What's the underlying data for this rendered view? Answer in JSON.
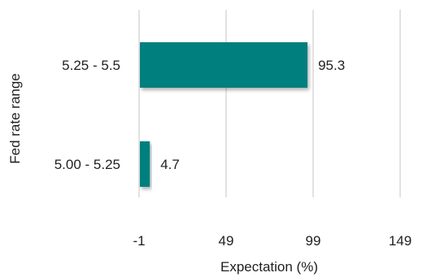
{
  "chart_data": {
    "type": "bar",
    "orientation": "horizontal",
    "categories": [
      "5.25 - 5.5",
      "5.00 - 5.25"
    ],
    "values": [
      95.3,
      4.7
    ],
    "data_labels": [
      "95.3",
      "4.7"
    ],
    "xlabel": "Expectation (%)",
    "ylabel": "Fed rate range",
    "xlim": [
      -1,
      149
    ],
    "xticks": [
      -1,
      49,
      99,
      149
    ],
    "xtick_labels": [
      "-1",
      "49",
      "99",
      "149"
    ],
    "grid": true,
    "legend": "none",
    "colors": {
      "bar": "#007f7f",
      "grid": "#d9d9d9"
    }
  }
}
